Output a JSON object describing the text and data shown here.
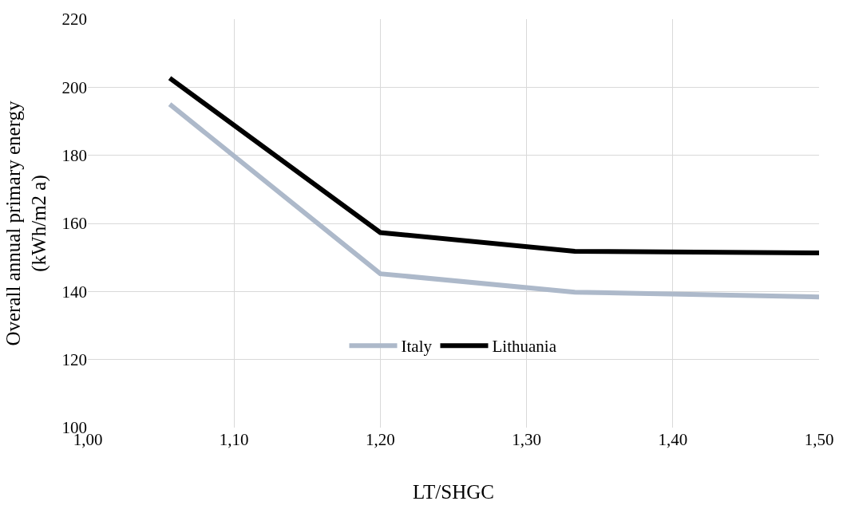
{
  "chart_data": {
    "type": "line",
    "xlabel": "LT/SHGC",
    "ylabel": "Overall annual primary energy\n(kWh/m2 a)",
    "x": [
      1.056,
      1.2,
      1.333,
      1.5
    ],
    "series": [
      {
        "name": "Italy",
        "color": "#adb9ca",
        "values": [
          195,
          145.2,
          139.8,
          138.4
        ]
      },
      {
        "name": "Lithuania",
        "color": "#000000",
        "values": [
          202.7,
          157.3,
          151.8,
          151.3
        ]
      }
    ],
    "xlim": [
      1.0,
      1.5
    ],
    "xticks": [
      {
        "value": 1.0,
        "label": "1,00"
      },
      {
        "value": 1.1,
        "label": "1,10"
      },
      {
        "value": 1.2,
        "label": "1,20"
      },
      {
        "value": 1.3,
        "label": "1,30"
      },
      {
        "value": 1.4,
        "label": "1,40"
      },
      {
        "value": 1.5,
        "label": "1,50"
      }
    ],
    "ylim": [
      100,
      220
    ],
    "yticks": [
      100,
      120,
      140,
      160,
      180,
      200,
      220
    ],
    "grid": true,
    "legend": "bottom",
    "marker": "none",
    "line_style": "solid"
  }
}
